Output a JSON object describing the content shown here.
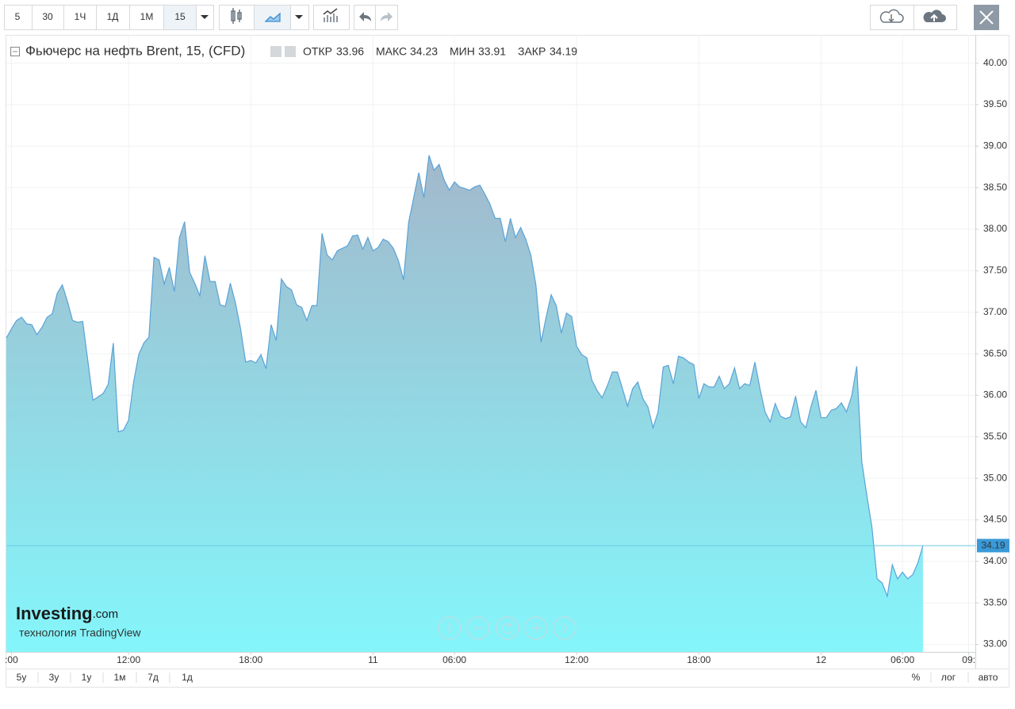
{
  "ui": {
    "intervals": [
      "5",
      "30",
      "1Ч",
      "1Д",
      "1М",
      "15"
    ],
    "ranges": [
      "5у",
      "3у",
      "1у",
      "1м",
      "7д",
      "1д"
    ],
    "scale_options": [
      "%",
      "лог",
      "авто"
    ],
    "watermark": {
      "brand": "Investing",
      "domain": ".com",
      "tagline": "технология TradingView"
    }
  },
  "chart_data": {
    "type": "area",
    "title": "Фьючерс на нефть Brent, 15, (CFD)",
    "stats": [
      {
        "label": "ОТКР",
        "value": 33.96
      },
      {
        "label": "МАКС",
        "value": 34.23
      },
      {
        "label": "МИН",
        "value": 33.91
      },
      {
        "label": "ЗАКР",
        "value": 34.19
      }
    ],
    "color": "#5aa2d8",
    "fill_top": "#a2b8cb",
    "fill_bottom": "#84f6fb",
    "last_line_color": "#69c9e6",
    "badge_color": "#3a9ad9",
    "grid": true,
    "values": [
      36.69,
      36.8,
      36.9,
      36.94,
      36.86,
      36.85,
      36.73,
      36.82,
      36.94,
      36.98,
      37.23,
      37.33,
      37.13,
      36.9,
      36.88,
      36.89,
      36.42,
      35.94,
      35.98,
      36.02,
      36.13,
      36.63,
      35.56,
      35.58,
      35.7,
      36.16,
      36.49,
      36.63,
      36.7,
      37.66,
      37.63,
      37.34,
      37.54,
      37.25,
      37.9,
      38.09,
      37.48,
      37.35,
      37.2,
      37.68,
      37.37,
      37.37,
      37.09,
      37.07,
      37.35,
      37.11,
      36.8,
      36.4,
      36.42,
      36.39,
      36.49,
      36.32,
      36.85,
      36.66,
      37.4,
      37.31,
      37.27,
      37.09,
      37.06,
      36.9,
      37.08,
      37.08,
      37.95,
      37.69,
      37.63,
      37.74,
      37.77,
      37.8,
      37.92,
      37.93,
      37.76,
      37.9,
      37.74,
      37.78,
      37.88,
      37.85,
      37.77,
      37.62,
      37.39,
      38.08,
      38.38,
      38.68,
      38.38,
      38.89,
      38.71,
      38.78,
      38.59,
      38.47,
      38.57,
      38.51,
      38.49,
      38.47,
      38.51,
      38.53,
      38.42,
      38.3,
      38.13,
      38.13,
      37.85,
      38.13,
      37.9,
      38.02,
      37.88,
      37.69,
      37.33,
      36.64,
      36.94,
      37.21,
      37.08,
      36.75,
      36.99,
      36.95,
      36.59,
      36.49,
      36.45,
      36.18,
      36.06,
      35.97,
      36.11,
      36.28,
      36.28,
      36.08,
      35.87,
      36.08,
      36.16,
      35.96,
      35.86,
      35.61,
      35.8,
      36.34,
      36.36,
      36.14,
      36.47,
      36.45,
      36.4,
      36.37,
      35.96,
      36.14,
      36.1,
      36.1,
      36.23,
      36.08,
      36.14,
      36.33,
      36.08,
      36.14,
      36.12,
      36.4,
      36.08,
      35.8,
      35.68,
      35.9,
      35.75,
      35.72,
      35.74,
      35.99,
      35.68,
      35.61,
      35.86,
      36.06,
      35.73,
      35.73,
      35.82,
      35.84,
      35.91,
      35.8,
      35.99,
      36.35,
      35.2,
      34.79,
      34.41,
      33.79,
      33.74,
      33.58,
      33.96,
      33.79,
      33.87,
      33.79,
      33.84,
      33.98,
      34.19
    ],
    "xlim": [
      0,
      190.3
    ],
    "xticks": [
      {
        "value": 1,
        "label": ":00"
      },
      {
        "value": 24,
        "label": "12:00"
      },
      {
        "value": 48,
        "label": "18:00"
      },
      {
        "value": 72,
        "label": "11"
      },
      {
        "value": 88,
        "label": "06:00"
      },
      {
        "value": 112,
        "label": "12:00"
      },
      {
        "value": 136,
        "label": "18:00"
      },
      {
        "value": 160,
        "label": "12"
      },
      {
        "value": 176,
        "label": "06:00"
      },
      {
        "value": 189,
        "label": "09:"
      }
    ],
    "ylim": [
      32.91,
      40.34
    ],
    "yticks": [
      {
        "value": 33,
        "label": "33.00"
      },
      {
        "value": 33.5,
        "label": "33.50"
      },
      {
        "value": 34,
        "label": "34.00"
      },
      {
        "value": 34.5,
        "label": "34.50"
      },
      {
        "value": 35,
        "label": "35.00"
      },
      {
        "value": 35.5,
        "label": "35.50"
      },
      {
        "value": 36,
        "label": "36.00"
      },
      {
        "value": 36.5,
        "label": "36.50"
      },
      {
        "value": 37,
        "label": "37.00"
      },
      {
        "value": 37.5,
        "label": "37.50"
      },
      {
        "value": 38,
        "label": "38.00"
      },
      {
        "value": 38.5,
        "label": "38.50"
      },
      {
        "value": 39,
        "label": "39.00"
      },
      {
        "value": 39.5,
        "label": "39.50"
      },
      {
        "value": 40,
        "label": "40.00"
      }
    ]
  }
}
